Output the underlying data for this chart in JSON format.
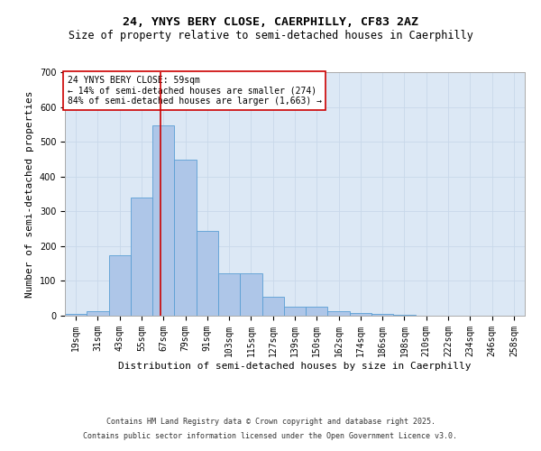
{
  "title1": "24, YNYS BERY CLOSE, CAERPHILLY, CF83 2AZ",
  "title2": "Size of property relative to semi-detached houses in Caerphilly",
  "xlabel": "Distribution of semi-detached houses by size in Caerphilly",
  "ylabel": "Number of semi-detached properties",
  "bar_labels": [
    "19sqm",
    "31sqm",
    "43sqm",
    "55sqm",
    "67sqm",
    "79sqm",
    "91sqm",
    "103sqm",
    "115sqm",
    "127sqm",
    "139sqm",
    "150sqm",
    "162sqm",
    "174sqm",
    "186sqm",
    "198sqm",
    "210sqm",
    "222sqm",
    "234sqm",
    "246sqm",
    "258sqm"
  ],
  "bar_values": [
    5,
    12,
    175,
    340,
    548,
    448,
    245,
    122,
    122,
    55,
    25,
    25,
    12,
    8,
    5,
    2,
    1,
    0,
    0,
    0,
    0
  ],
  "bar_color": "#aec6e8",
  "bar_edge_color": "#5a9fd4",
  "grid_color": "#c8d8ea",
  "background_color": "#dce8f5",
  "annotation_box_text": "24 YNYS BERY CLOSE: 59sqm\n← 14% of semi-detached houses are smaller (274)\n84% of semi-detached houses are larger (1,663) →",
  "annotation_box_color": "#ffffff",
  "annotation_box_edge_color": "#cc0000",
  "vline_x": 3.88,
  "vline_color": "#cc0000",
  "ylim": [
    0,
    700
  ],
  "yticks": [
    0,
    100,
    200,
    300,
    400,
    500,
    600,
    700
  ],
  "title1_fontsize": 9.5,
  "title2_fontsize": 8.5,
  "xlabel_fontsize": 8,
  "ylabel_fontsize": 8,
  "tick_fontsize": 7,
  "annotation_fontsize": 7,
  "footer1": "Contains HM Land Registry data © Crown copyright and database right 2025.",
  "footer2": "Contains public sector information licensed under the Open Government Licence v3.0.",
  "footer_fontsize": 6
}
